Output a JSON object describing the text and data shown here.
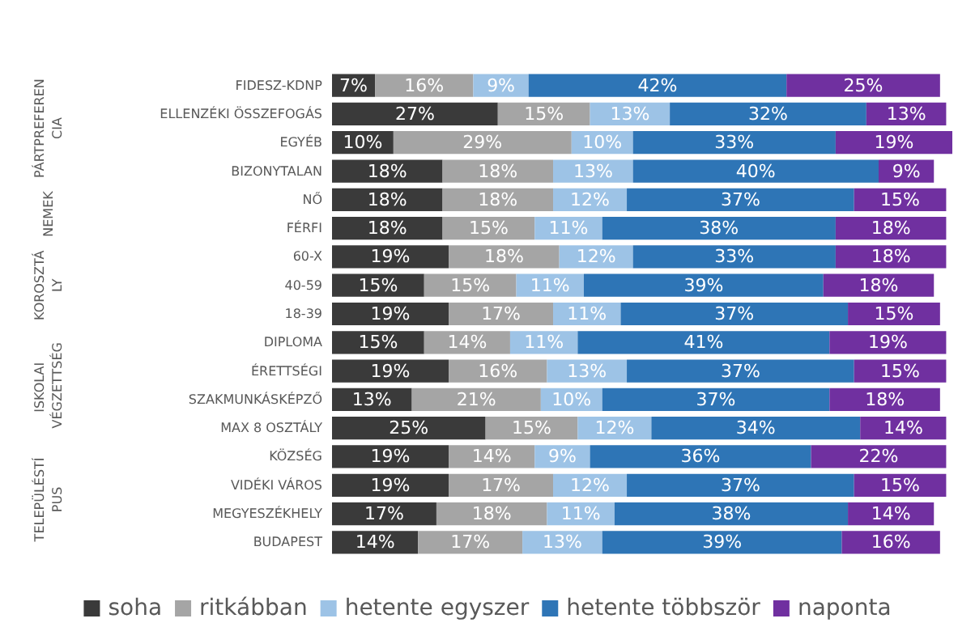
{
  "chart_data": {
    "type": "bar",
    "orientation": "horizontal",
    "stacked": true,
    "tick_labels": false,
    "legend": "bottom",
    "annotations": [
      "PÁRTPREFERENCIA",
      "NEMEK",
      "KOROSZTÁLY",
      "ISKOLAI VÉGZETTSÉG",
      "TELEPÜLÉSTÍPUS"
    ],
    "categories": [
      "FIDESZ-KDNP",
      "ELLENZÉKI ÖSSZEFOGÁS",
      "EGYÉB",
      "BIZONYTALAN",
      "NŐ",
      "FÉRFI",
      "60-X",
      "40-59",
      "18-39",
      "DIPLOMA",
      "ÉRETTSÉGI",
      "SZAKMUNKÁSKÉPZŐ",
      "MAX 8 OSZTÁLY",
      "KÖZSÉG",
      "VIDÉKI VÁROS",
      "MEGYESZÉKHELY",
      "BUDAPEST"
    ],
    "series": [
      {
        "name": "soha",
        "color": "#3a3a3a",
        "values": [
          7,
          27,
          10,
          18,
          18,
          18,
          19,
          15,
          19,
          15,
          19,
          13,
          25,
          19,
          19,
          17,
          14
        ],
        "value_labels": [
          "7%",
          "27%",
          "10%",
          "18%",
          "18%",
          "18%",
          "19%",
          "15%",
          "19%",
          "15%",
          "19%",
          "13%",
          "25%",
          "19%",
          "19%",
          "17%",
          "14%"
        ]
      },
      {
        "name": "ritkábban",
        "color": "#a5a5a5",
        "values": [
          16,
          15,
          29,
          18,
          18,
          15,
          18,
          15,
          17,
          14,
          16,
          21,
          15,
          14,
          17,
          18,
          17
        ],
        "value_labels": [
          "16%",
          "15%",
          "29%",
          "18%",
          "18%",
          "15%",
          "18%",
          "15%",
          "17%",
          "14%",
          "16%",
          "21%",
          "15%",
          "14%",
          "17%",
          "18%",
          "17%"
        ]
      },
      {
        "name": "hetente egyszer",
        "color": "#9dc3e6",
        "values": [
          9,
          13,
          10,
          13,
          12,
          11,
          12,
          11,
          11,
          11,
          13,
          10,
          12,
          9,
          12,
          11,
          13
        ],
        "value_labels": [
          "9%",
          "13%",
          "10%",
          "13%",
          "12%",
          "11%",
          "12%",
          "11%",
          "11%",
          "11%",
          "13%",
          "10%",
          "12%",
          "9%",
          "12%",
          "11%",
          "13%"
        ]
      },
      {
        "name": "hetente többször",
        "color": "#2e75b6",
        "values": [
          42,
          32,
          33,
          40,
          37,
          38,
          33,
          39,
          37,
          41,
          37,
          37,
          34,
          36,
          37,
          38,
          39
        ],
        "value_labels": [
          "42%",
          "32%",
          "33%",
          "40%",
          "37%",
          "38%",
          "33%",
          "39%",
          "37%",
          "41%",
          "37%",
          "37%",
          "34%",
          "36%",
          "37%",
          "38%",
          "39%"
        ]
      },
      {
        "name": "naponta",
        "color": "#7030a0",
        "values": [
          25,
          13,
          19,
          9,
          15,
          18,
          18,
          18,
          15,
          19,
          15,
          18,
          14,
          22,
          15,
          14,
          16
        ],
        "value_labels": [
          "25%",
          "13%",
          "19%",
          "9%",
          "15%",
          "18%",
          "18%",
          "18%",
          "15%",
          "19%",
          "15%",
          "18%",
          "14%",
          "22%",
          "15%",
          "14%",
          "16%"
        ]
      }
    ]
  }
}
